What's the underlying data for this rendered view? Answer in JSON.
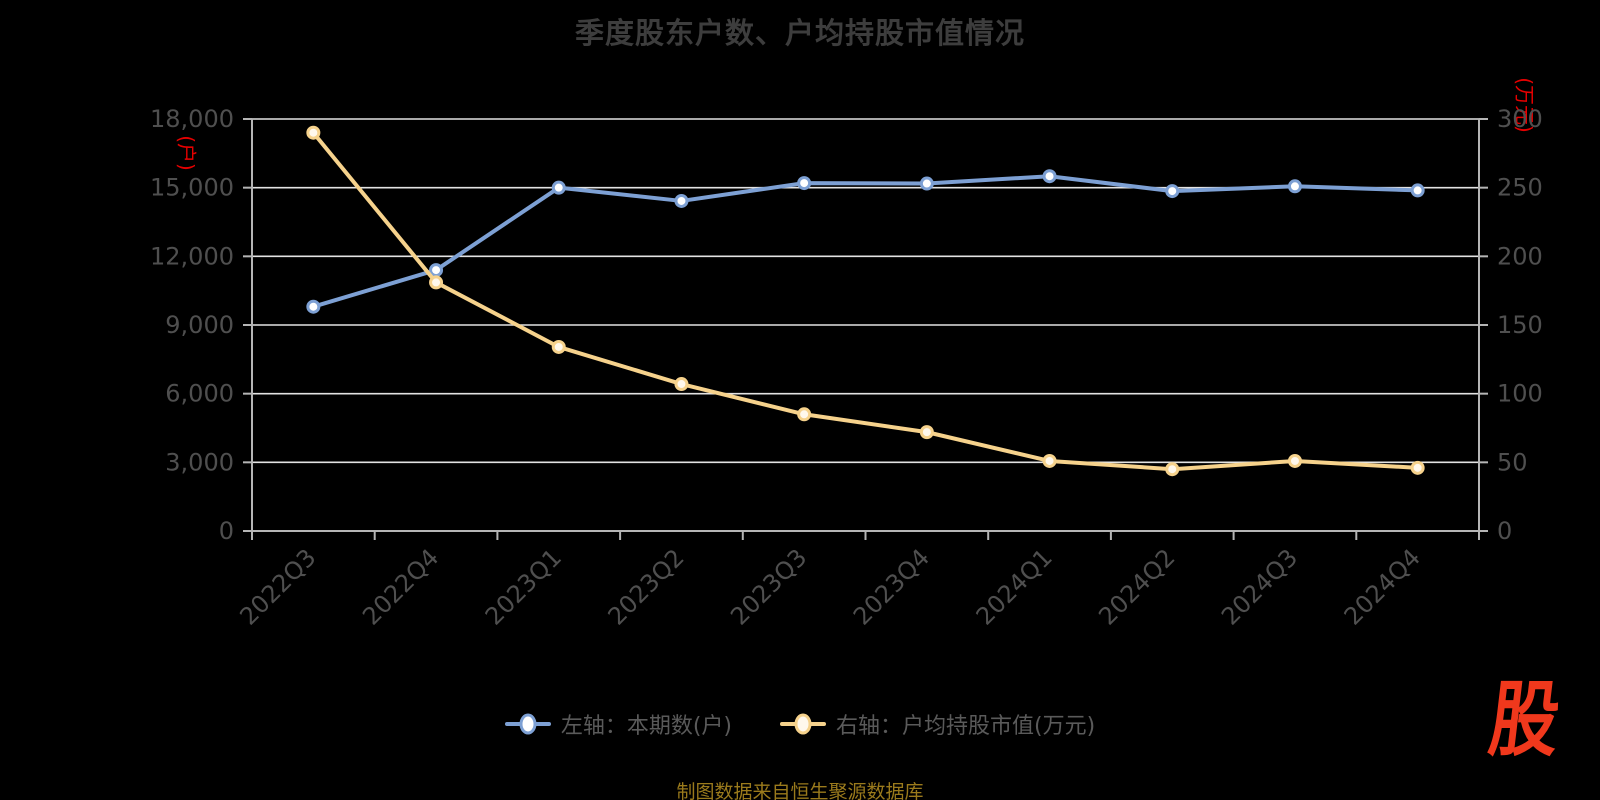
{
  "title": "季度股东户数、户均持股市值情况",
  "source_note": "制图数据来自恒生聚源数据库",
  "logo_text": "股",
  "colors": {
    "background": "#000000",
    "title_text": "#3d3d3d",
    "axis_label": "#4f4f4f",
    "grid_line": "#e3e3e3",
    "axis_line": "#b5b5b5",
    "unit_label_red": "#e60000",
    "source_text": "#9a7a1c",
    "logo_red": "#f0381c",
    "blue_series": "#7da0d4",
    "yellow_series": "#f6d28c"
  },
  "legend": {
    "items": [
      {
        "label": "左轴：本期数(户)",
        "color": "#7da0d4",
        "marker_fill": "#ffffff"
      },
      {
        "label": "右轴：户均持股市值(万元)",
        "color": "#f6d28c",
        "marker_fill": "#fff8ec"
      }
    ]
  },
  "chart_data": {
    "type": "line",
    "title": "季度股东户数、户均持股市值情况",
    "categories": [
      "2022Q3",
      "2022Q4",
      "2023Q1",
      "2023Q2",
      "2023Q3",
      "2023Q4",
      "2024Q1",
      "2024Q2",
      "2024Q3",
      "2024Q4"
    ],
    "series": [
      {
        "name": "左轴：本期数(户)",
        "axis": "left",
        "color": "#7da0d4",
        "marker_fill": "#ffffff",
        "values": [
          9800,
          11400,
          15000,
          14420,
          15200,
          15180,
          15500,
          14850,
          15060,
          14880
        ]
      },
      {
        "name": "右轴：户均持股市值(万元)",
        "axis": "right",
        "color": "#f6d28c",
        "marker_fill": "#fff8ec",
        "values": [
          290,
          181,
          134,
          107,
          85,
          72,
          51,
          45,
          51,
          46
        ]
      }
    ],
    "y_axis_left": {
      "unit": "(户)",
      "min": 0,
      "max": 18000,
      "tick_labels": [
        "18,000",
        "15,000",
        "12,000",
        "9,000",
        "6,000",
        "3,000",
        "0"
      ]
    },
    "y_axis_right": {
      "unit": "(万元)",
      "min": 0,
      "max": 300,
      "tick_labels": [
        "300",
        "250",
        "200",
        "150",
        "100",
        "50",
        "0"
      ]
    },
    "grid": true,
    "legend_position": "bottom",
    "x_label_rotation": 45
  }
}
